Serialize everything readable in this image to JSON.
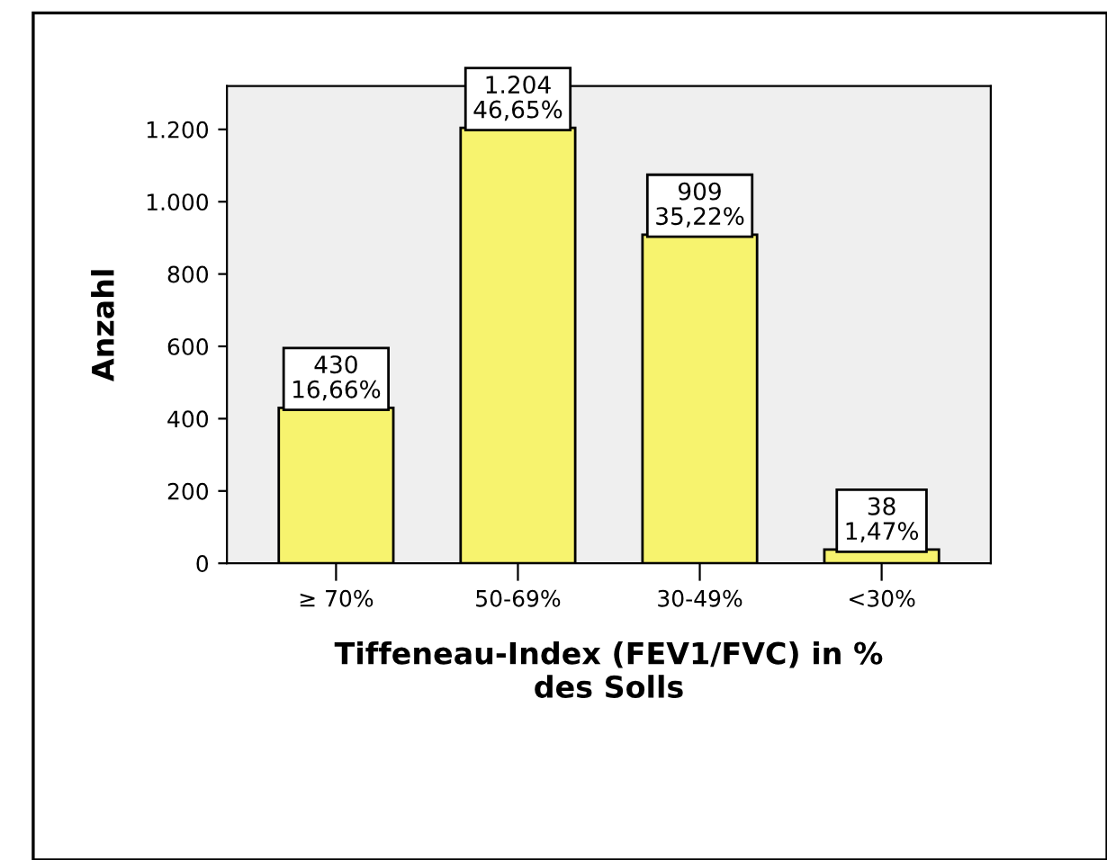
{
  "chart_data": {
    "type": "bar",
    "ylabel": "Anzahl",
    "xlabel": "Tiffeneau-Index (FEV1/FVC) in %\ndes Solls",
    "categories": [
      "≥ 70%",
      "50-69%",
      "30-49%",
      "<30%"
    ],
    "values": [
      430,
      1204,
      909,
      38
    ],
    "color": "#f7f36e",
    "value_labels": [
      "430\n16,66%",
      "1.204\n46,65%",
      "909\n35,22%",
      "38\n1,47%"
    ],
    "ylim": [
      0,
      1320
    ],
    "yticks": [
      0,
      200,
      400,
      600,
      800,
      {
        "value": 1000,
        "label": "1.000"
      },
      {
        "value": 1200,
        "label": "1.200"
      }
    ],
    "grid": false,
    "legend": false
  }
}
